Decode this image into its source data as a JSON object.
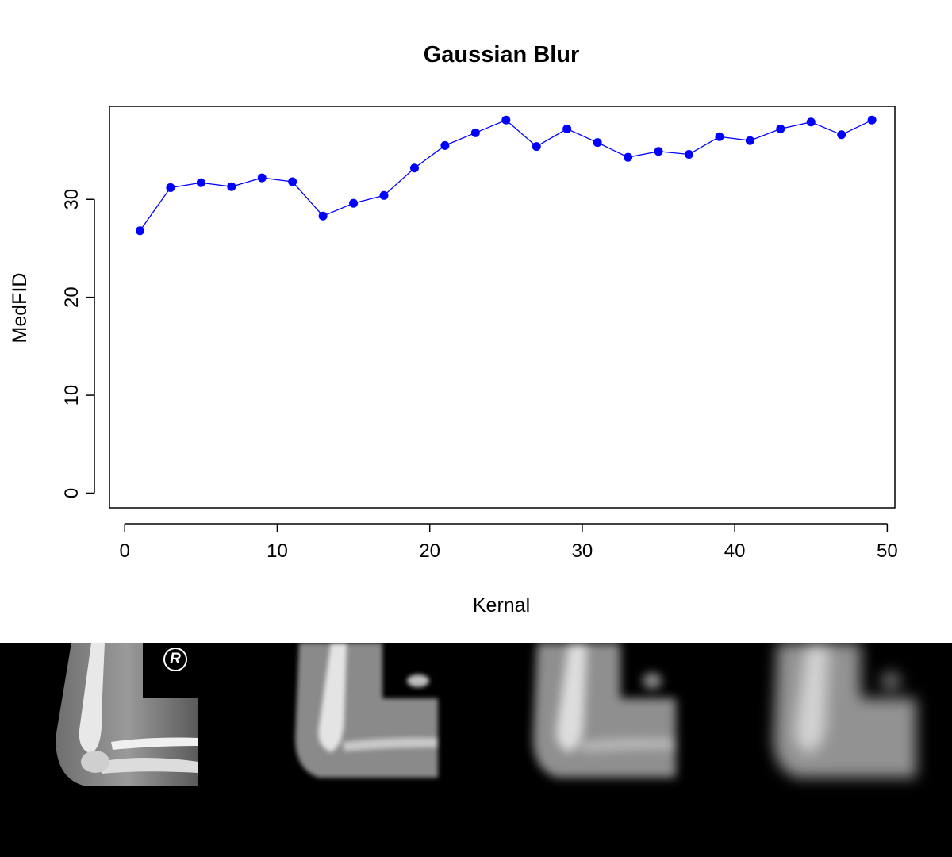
{
  "chart_data": {
    "type": "line",
    "title": "Gaussian Blur",
    "xlabel": "Kernal",
    "ylabel": "MedFID",
    "xlim": [
      -1,
      50.5
    ],
    "ylim": [
      -1.5,
      39.5
    ],
    "xticks": [
      0,
      10,
      20,
      30,
      40,
      50
    ],
    "yticks": [
      0,
      10,
      20,
      30
    ],
    "grid": false,
    "series": [
      {
        "x": [
          1,
          3,
          5,
          7,
          9,
          11,
          13,
          15,
          17,
          19,
          21,
          23,
          25,
          27,
          29,
          31,
          33,
          35,
          37,
          39,
          41,
          43,
          45,
          47,
          49
        ],
        "y": [
          26.8,
          31.2,
          31.7,
          31.3,
          32.2,
          31.8,
          28.3,
          29.6,
          30.4,
          33.2,
          35.5,
          36.8,
          38.1,
          35.4,
          37.2,
          35.8,
          34.3,
          34.9,
          34.6,
          36.4,
          36.0,
          37.2,
          37.9,
          36.6,
          38.1
        ],
        "color": "#0000ff"
      }
    ]
  },
  "strip": {
    "marker_label": "R"
  }
}
